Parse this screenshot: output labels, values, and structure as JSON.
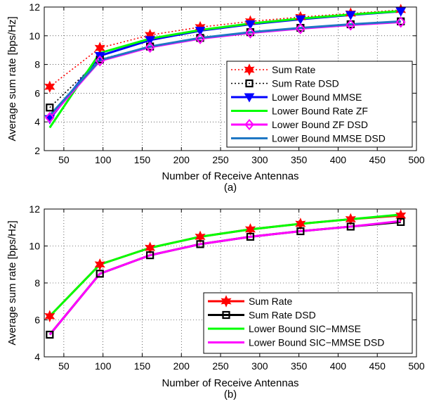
{
  "chart_data": [
    {
      "type": "line",
      "caption": "(a)",
      "xlabel": "Number of Receive Antennas",
      "ylabel": "Average sum rate [bps/Hz]",
      "xlim": [
        25,
        500
      ],
      "ylim": [
        2,
        12
      ],
      "xticks": [
        50,
        100,
        150,
        200,
        250,
        300,
        350,
        400,
        450,
        500
      ],
      "yticks": [
        2,
        4,
        6,
        8,
        10,
        12
      ],
      "grid": true,
      "legend_position": "bottom-right",
      "x": [
        32,
        96,
        160,
        224,
        288,
        352,
        416,
        480
      ],
      "series": [
        {
          "name": "Sum Rate",
          "color": "#ff0000",
          "dash": "dotted",
          "marker": "hexagram",
          "values": [
            6.45,
            9.15,
            10.05,
            10.6,
            11.0,
            11.3,
            11.55,
            11.8
          ]
        },
        {
          "name": "Sum Rate DSD",
          "color": "#000000",
          "dash": "dotted",
          "marker": "square",
          "values": [
            5.0,
            8.35,
            9.25,
            9.85,
            10.25,
            10.55,
            10.8,
            11.0
          ]
        },
        {
          "name": "Lower Bound MMSE",
          "color": "#0000ff",
          "dash": "solid",
          "marker": "triangle-down",
          "values": [
            4.2,
            8.6,
            9.7,
            10.35,
            10.8,
            11.15,
            11.45,
            11.7
          ]
        },
        {
          "name": "Lower Bound Rate ZF",
          "color": "#00ff00",
          "dash": "solid",
          "marker": "none",
          "values": [
            3.6,
            8.8,
            9.8,
            10.4,
            10.85,
            11.2,
            11.48,
            11.72
          ]
        },
        {
          "name": "Lower Bound ZF DSD",
          "color": "#ff00ff",
          "dash": "solid",
          "marker": "diamond",
          "values": [
            4.3,
            8.25,
            9.2,
            9.8,
            10.2,
            10.5,
            10.75,
            10.95
          ]
        },
        {
          "name": "Lower Bound MMSE DSD",
          "color": "#1f77c4",
          "dash": "solid",
          "marker": "none",
          "values": [
            4.45,
            8.3,
            9.25,
            9.85,
            10.25,
            10.55,
            10.8,
            11.0
          ]
        }
      ]
    },
    {
      "type": "line",
      "caption": "(b)",
      "xlabel": "Number of Receive Antennas",
      "ylabel": "Average sum rate [bps/Hz]",
      "xlim": [
        25,
        500
      ],
      "ylim": [
        4,
        12
      ],
      "xticks": [
        50,
        100,
        150,
        200,
        250,
        300,
        350,
        400,
        450,
        500
      ],
      "yticks": [
        4,
        6,
        8,
        10,
        12
      ],
      "grid": true,
      "legend_position": "bottom-right",
      "x": [
        32,
        96,
        160,
        224,
        288,
        352,
        416,
        480
      ],
      "series": [
        {
          "name": "Sum Rate",
          "color": "#ff0000",
          "dash": "solid",
          "marker": "hexagram",
          "values": [
            6.2,
            9.0,
            9.9,
            10.5,
            10.9,
            11.2,
            11.45,
            11.65
          ]
        },
        {
          "name": "Sum Rate DSD",
          "color": "#000000",
          "dash": "solid",
          "marker": "square",
          "values": [
            5.2,
            8.5,
            9.5,
            10.1,
            10.5,
            10.8,
            11.05,
            11.3
          ]
        },
        {
          "name": "Lower Bound SIC−MMSE",
          "color": "#00ff00",
          "dash": "solid",
          "marker": "none",
          "values": [
            6.2,
            9.0,
            9.9,
            10.5,
            10.9,
            11.2,
            11.45,
            11.7
          ]
        },
        {
          "name": "Lower Bound SIC−MMSE DSD",
          "color": "#ff00ff",
          "dash": "solid",
          "marker": "none",
          "values": [
            5.2,
            8.5,
            9.5,
            10.1,
            10.5,
            10.8,
            11.05,
            11.35
          ]
        }
      ]
    }
  ]
}
